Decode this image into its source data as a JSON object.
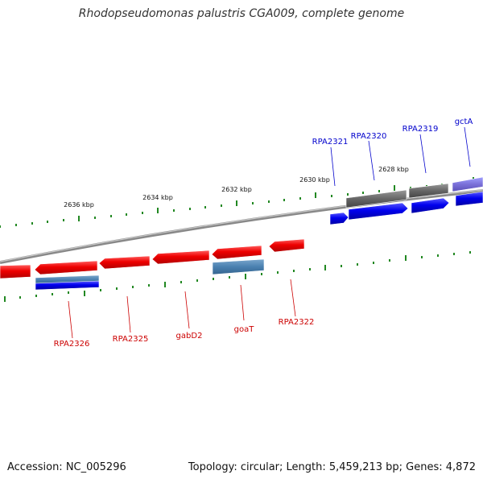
{
  "title": "Rhodopseudomonas palustris CGA009, complete genome",
  "footer": {
    "accession": "Accession: NC_005296",
    "topology": "Topology: circular; Length: 5,459,213 bp; Genes: 4,872"
  },
  "colors": {
    "forward_gene": "#0000ee",
    "reverse_gene": "#ee0000",
    "backbone": "#888888",
    "tick": "#228822",
    "label_top": "#0000cc",
    "label_bottom": "#cc0000"
  },
  "scale_labels": [
    "2636 kbp",
    "2634 kbp",
    "2632 kbp",
    "2630 kbp",
    "2628 kbp"
  ],
  "gene_labels_top": [
    "RPA2321",
    "RPA2320",
    "RPA2319",
    "gctA"
  ],
  "gene_labels_bottom": [
    "RPA2326",
    "RPA2325",
    "gabD2",
    "goaT",
    "RPA2322"
  ]
}
